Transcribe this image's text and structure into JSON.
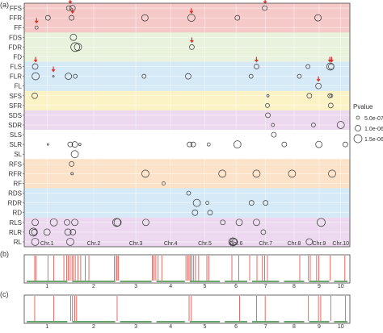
{
  "panel_labels": [
    "(a)",
    "(b)",
    "(c)"
  ],
  "legend": {
    "title": "Pvalue",
    "entries": [
      {
        "label": "5.0e-07",
        "r": 2
      },
      {
        "label": "1.0e-06",
        "r": 3.5
      },
      {
        "label": "1.5e-06",
        "r": 5
      }
    ]
  },
  "band_colors": {
    "red": "#f6c9c9",
    "green": "#e9f2dc",
    "blue": "#d6e9f7",
    "yellow": "#fbf3c6",
    "purple": "#ecd9ef",
    "white": "#ffffff",
    "orange": "#fce2c8"
  },
  "accent_colors": {
    "arrow": "#d9322b",
    "peak": "#e0463e",
    "chromosome_bar": "#3a8a3a"
  },
  "chart_data": [
    {
      "type": "scatter",
      "description_id": "a",
      "traits": [
        "FFS",
        "FFR",
        "FF",
        "FDS",
        "FDR",
        "FD",
        "FLS",
        "FLR",
        "FL",
        "SFS",
        "SFR",
        "SDS",
        "SDR",
        "SLS",
        "SLR",
        "SL",
        "RFS",
        "RFR",
        "RF",
        "RDS",
        "RDR",
        "RD",
        "RLS",
        "RLR",
        "RL"
      ],
      "trait_bands": [
        "red",
        "red",
        "red",
        "green",
        "green",
        "green",
        "blue",
        "blue",
        "blue",
        "yellow",
        "yellow",
        "purple",
        "purple",
        "white",
        "white",
        "white",
        "orange",
        "orange",
        "orange",
        "blue",
        "blue",
        "blue",
        "purple",
        "purple",
        "purple"
      ],
      "chromosomes": [
        "Chr.1",
        "Chr.2",
        "Chr.3",
        "Chr.4",
        "Chr.5",
        "Chr.6",
        "Chr.7",
        "Chr.8",
        "Chr.9",
        "Chr.10"
      ],
      "chromosome_extent": [
        [
          0,
          10
        ],
        [
          10,
          20.5
        ],
        [
          20.5,
          28.5
        ],
        [
          28.5,
          35.8
        ],
        [
          35.8,
          43.5
        ],
        [
          43.5,
          49.5
        ],
        [
          49.5,
          56.5
        ],
        [
          56.5,
          62
        ],
        [
          62,
          67.5
        ],
        [
          67.5,
          71.5
        ]
      ],
      "points": [
        {
          "trait": "FFS",
          "pos": 9.8,
          "p": 3
        },
        {
          "trait": "FFS",
          "pos": 10.6,
          "p": 3.5
        },
        {
          "trait": "FFS",
          "pos": 52.8,
          "p": 3
        },
        {
          "trait": "FFR",
          "pos": 5.2,
          "p": 3
        },
        {
          "trait": "FFR",
          "pos": 10.4,
          "p": 3
        },
        {
          "trait": "FFR",
          "pos": 26.5,
          "p": 4
        },
        {
          "trait": "FFR",
          "pos": 36.7,
          "p": 4.5
        },
        {
          "trait": "FFR",
          "pos": 46.8,
          "p": 3
        },
        {
          "trait": "FFR",
          "pos": 64.5,
          "p": 4
        },
        {
          "trait": "FF",
          "pos": 2.7,
          "p": 2
        },
        {
          "trait": "FDS",
          "pos": 10.8,
          "p": 4
        },
        {
          "trait": "FDR",
          "pos": 11.2,
          "p": 5.5
        },
        {
          "trait": "FDR",
          "pos": 11.8,
          "p": 4.5
        },
        {
          "trait": "FDR",
          "pos": 36.8,
          "p": 3
        },
        {
          "trait": "FLS",
          "pos": 2.4,
          "p": 3.5
        },
        {
          "trait": "FLS",
          "pos": 51,
          "p": 3
        },
        {
          "trait": "FLS",
          "pos": 62.3,
          "p": 2.5
        },
        {
          "trait": "FLS",
          "pos": 67.2,
          "p": 4.5
        },
        {
          "trait": "FLS",
          "pos": 67.4,
          "p": 3.5
        },
        {
          "trait": "FLR",
          "pos": 2.5,
          "p": 4.5
        },
        {
          "trait": "FLR",
          "pos": 6.4,
          "p": 1
        },
        {
          "trait": "FLR",
          "pos": 9.7,
          "p": 4
        },
        {
          "trait": "FLR",
          "pos": 11.2,
          "p": 2.5
        },
        {
          "trait": "FLR",
          "pos": 26.3,
          "p": 2.5
        },
        {
          "trait": "FLR",
          "pos": 36,
          "p": 3.5
        },
        {
          "trait": "FLR",
          "pos": 49.8,
          "p": 2.5
        },
        {
          "trait": "FLR",
          "pos": 60.4,
          "p": 2.5
        },
        {
          "trait": "FL",
          "pos": 64.6,
          "p": 3.5
        },
        {
          "trait": "SFS",
          "pos": 2.3,
          "p": 3.5
        },
        {
          "trait": "SFS",
          "pos": 53.5,
          "p": 1.5
        },
        {
          "trait": "SFS",
          "pos": 62.6,
          "p": 3
        },
        {
          "trait": "SFS",
          "pos": 67.1,
          "p": 2.5
        },
        {
          "trait": "SFS",
          "pos": 67.4,
          "p": 2
        },
        {
          "trait": "SFR",
          "pos": 53.4,
          "p": 2.5
        },
        {
          "trait": "SFR",
          "pos": 67.3,
          "p": 3
        },
        {
          "trait": "SDS",
          "pos": 53.5,
          "p": 3
        },
        {
          "trait": "SDR",
          "pos": 54.6,
          "p": 2
        },
        {
          "trait": "SDR",
          "pos": 63.5,
          "p": 2.5
        },
        {
          "trait": "SDR",
          "pos": 69.5,
          "p": 4.5
        },
        {
          "trait": "SLS",
          "pos": 54.8,
          "p": 3
        },
        {
          "trait": "SLR",
          "pos": 5.2,
          "p": 1
        },
        {
          "trait": "SLR",
          "pos": 10.1,
          "p": 3
        },
        {
          "trait": "SLR",
          "pos": 11.1,
          "p": 3.5
        },
        {
          "trait": "SLR",
          "pos": 12.2,
          "p": 1.5
        },
        {
          "trait": "SLR",
          "pos": 36.3,
          "p": 3
        },
        {
          "trait": "SLR",
          "pos": 37.1,
          "p": 3
        },
        {
          "trait": "SLR",
          "pos": 40.5,
          "p": 2
        },
        {
          "trait": "SLR",
          "pos": 46.8,
          "p": 4.5
        },
        {
          "trait": "SLR",
          "pos": 57.1,
          "p": 3
        },
        {
          "trait": "SLR",
          "pos": 64.7,
          "p": 4
        },
        {
          "trait": "SLR",
          "pos": 70.5,
          "p": 3
        },
        {
          "trait": "SL",
          "pos": 11.1,
          "p": 4.5
        },
        {
          "trait": "RFS",
          "pos": 10.4,
          "p": 3
        },
        {
          "trait": "RFR",
          "pos": 10.5,
          "p": 1.5
        },
        {
          "trait": "RFR",
          "pos": 26.6,
          "p": 4.5
        },
        {
          "trait": "RFR",
          "pos": 43.5,
          "p": 4.5
        },
        {
          "trait": "RFR",
          "pos": 51,
          "p": 4.5
        },
        {
          "trait": "RFR",
          "pos": 58.8,
          "p": 4.5
        },
        {
          "trait": "RFR",
          "pos": 67.6,
          "p": 4.5
        },
        {
          "trait": "RF",
          "pos": 30.6,
          "p": 2
        },
        {
          "trait": "RDS",
          "pos": 36.1,
          "p": 2.5
        },
        {
          "trait": "RDR",
          "pos": 37.9,
          "p": 4.5
        },
        {
          "trait": "RDR",
          "pos": 40.2,
          "p": 2
        },
        {
          "trait": "RDR",
          "pos": 49.9,
          "p": 3
        },
        {
          "trait": "RDR",
          "pos": 53,
          "p": 3
        },
        {
          "trait": "RD",
          "pos": 37.5,
          "p": 3.5
        },
        {
          "trait": "RD",
          "pos": 40.8,
          "p": 3
        },
        {
          "trait": "RLS",
          "pos": 2.4,
          "p": 4
        },
        {
          "trait": "RLS",
          "pos": 6.5,
          "p": 4.5
        },
        {
          "trait": "RLS",
          "pos": 9.4,
          "p": 3.5
        },
        {
          "trait": "RLS",
          "pos": 11.1,
          "p": 4
        },
        {
          "trait": "RLS",
          "pos": 20.3,
          "p": 5
        },
        {
          "trait": "RLS",
          "pos": 20.5,
          "p": 4.5
        },
        {
          "trait": "RLS",
          "pos": 26.7,
          "p": 4
        },
        {
          "trait": "RLS",
          "pos": 43.6,
          "p": 3
        },
        {
          "trait": "RLS",
          "pos": 47.2,
          "p": 4
        },
        {
          "trait": "RLS",
          "pos": 51,
          "p": 4
        },
        {
          "trait": "RLS",
          "pos": 65.2,
          "p": 5
        },
        {
          "trait": "RLR",
          "pos": 2,
          "p": 5
        },
        {
          "trait": "RLR",
          "pos": 2.2,
          "p": 3.5
        },
        {
          "trait": "RLR",
          "pos": 5,
          "p": 4
        },
        {
          "trait": "RLR",
          "pos": 9.6,
          "p": 4
        },
        {
          "trait": "RLR",
          "pos": 10.7,
          "p": 3.5
        },
        {
          "trait": "RLR",
          "pos": 52.5,
          "p": 3
        },
        {
          "trait": "RL",
          "pos": 2.4,
          "p": 4.5
        },
        {
          "trait": "RL",
          "pos": 10.1,
          "p": 4.5
        },
        {
          "trait": "RL",
          "pos": 45.8,
          "p": 5
        },
        {
          "trait": "RL",
          "pos": 46,
          "p": 4.5
        },
        {
          "trait": "RL",
          "pos": 46.2,
          "p": 3.5
        },
        {
          "trait": "RL",
          "pos": 62.6,
          "p": 4
        }
      ],
      "arrows": [
        {
          "trait": "FFS",
          "pos": 10.1
        },
        {
          "trait": "FFS",
          "pos": 52.9
        },
        {
          "trait": "FFR",
          "pos": 10.6
        },
        {
          "trait": "FFR",
          "pos": 36.7
        },
        {
          "trait": "FF",
          "pos": 2.7
        },
        {
          "trait": "FDR",
          "pos": 36.8
        },
        {
          "trait": "FLS",
          "pos": 2.5
        },
        {
          "trait": "FLS",
          "pos": 51
        },
        {
          "trait": "FLS",
          "pos": 67.1
        },
        {
          "trait": "FLS",
          "pos": 67.5
        },
        {
          "trait": "FLR",
          "pos": 6.4
        },
        {
          "trait": "FL",
          "pos": 64.6
        }
      ]
    },
    {
      "type": "strip",
      "description_id": "b",
      "chromosome_labels": [
        "1",
        "2",
        "3",
        "4",
        "5",
        "6",
        "7",
        "8",
        "9",
        "10"
      ],
      "peaks": [
        2.3,
        2.6,
        5.2,
        6.5,
        8.7,
        9.3,
        9.7,
        10.1,
        10.5,
        10.8,
        11.2,
        11.8,
        12.4,
        13.4,
        14.2,
        19.8,
        20.2,
        20.4,
        20.7,
        28.1,
        28.5,
        28.9,
        29.4,
        30.2,
        35.5,
        35.9,
        36.2,
        36.5,
        36.8,
        37.2,
        37.6,
        38.3,
        40.1,
        40.5,
        45.6,
        47.1,
        49.5,
        51.1,
        52.3,
        52.8,
        53.4,
        60.5,
        62.4,
        62.8,
        64.2,
        64.7,
        67.2,
        70.4
      ]
    },
    {
      "type": "strip",
      "description_id": "c",
      "chromosome_labels": [
        "1",
        "2",
        "3",
        "4",
        "5",
        "6",
        "7",
        "8",
        "9",
        "10"
      ],
      "peaks": [
        2.3,
        6.5,
        10.2,
        10.6,
        11.1,
        11.5,
        20.4,
        36.2,
        36.7,
        47.3,
        51,
        52.9,
        62.4,
        64.6,
        65.1,
        67.3,
        70.5
      ]
    }
  ]
}
